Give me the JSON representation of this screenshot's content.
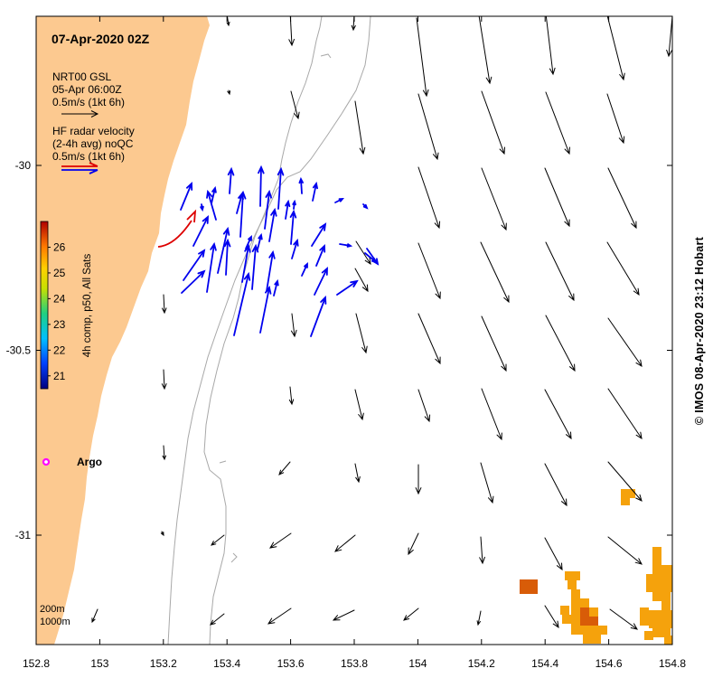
{
  "title": "07-Apr-2020 02Z",
  "legend": {
    "model_line1": "NRT00 GSL",
    "model_line2": "05-Apr 06:00Z",
    "model_line3": "0.5m/s (1kt 6h)",
    "radar_line1": "HF radar velocity",
    "radar_line2": "(2-4h avg) noQC",
    "radar_line3": "0.5m/s (1kt 6h)"
  },
  "colorbar": {
    "label": "4h comp, p50, All Sats",
    "ticks": [
      "21",
      "22",
      "23",
      "24",
      "25",
      "26"
    ],
    "range": [
      20.5,
      27.0
    ]
  },
  "axes": {
    "x_ticks": [
      "152.8",
      "153",
      "153.2",
      "153.4",
      "153.6",
      "153.8",
      "154",
      "154.2",
      "154.4",
      "154.6",
      "154.8"
    ],
    "y_ticks": [
      "-30",
      "-30.5",
      "-31"
    ]
  },
  "argo_label": "Argo",
  "depth_labels": [
    "200m",
    "1000m"
  ],
  "credit": "© IMOS 08-Apr-2020 23:12 Hobart",
  "colors": {
    "land": "#fcc990",
    "radar_arrows": "#0000ee",
    "current_arrows": "#000000",
    "trail": "#dd0000",
    "argo": "#ff00ff",
    "sst_warm": "#f5a20c",
    "sst_hot": "#d85c08"
  }
}
